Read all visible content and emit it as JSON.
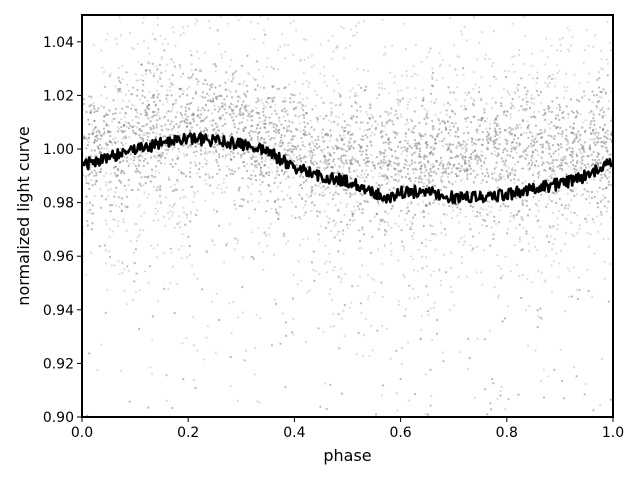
{
  "chart_data": {
    "type": "scatter",
    "title": "",
    "xlabel": "phase",
    "ylabel": "normalized light curve",
    "xlim": [
      0.0,
      1.0
    ],
    "ylim": [
      0.9,
      1.05
    ],
    "xticks": [
      0.0,
      0.2,
      0.4,
      0.6,
      0.8,
      1.0
    ],
    "xtick_labels": [
      "0.0",
      "0.2",
      "0.4",
      "0.6",
      "0.8",
      "1.0"
    ],
    "yticks": [
      0.9,
      0.92,
      0.94,
      0.96,
      0.98,
      1.0,
      1.02,
      1.04
    ],
    "ytick_labels": [
      "0.90",
      "0.92",
      "0.94",
      "0.96",
      "0.98",
      "1.00",
      "1.02",
      "1.04"
    ],
    "grid": false,
    "legend": "none",
    "series": [
      {
        "kind": "scatter",
        "color": "#808080",
        "x": [
          0.0,
          0.05,
          0.1,
          0.15,
          0.2,
          0.25,
          0.3,
          0.35,
          0.4,
          0.45,
          0.5,
          0.55,
          0.6,
          0.65,
          0.7,
          0.75,
          0.8,
          0.85,
          0.9,
          0.95,
          1.0
        ],
        "center": [
          0.998,
          1.002,
          1.005,
          1.008,
          1.009,
          1.008,
          1.006,
          1.003,
          1.0,
          0.997,
          0.995,
          0.994,
          0.994,
          0.995,
          0.996,
          0.997,
          0.998,
          0.999,
          1.0,
          1.0,
          1.001
        ],
        "dense_halfwidth": 0.012,
        "spread": 0.03
      },
      {
        "kind": "line",
        "color": "#000000",
        "x": [
          0.0,
          0.05,
          0.1,
          0.15,
          0.2,
          0.25,
          0.3,
          0.35,
          0.4,
          0.45,
          0.5,
          0.55,
          0.575,
          0.6,
          0.65,
          0.7,
          0.75,
          0.8,
          0.85,
          0.9,
          0.95,
          1.0
        ],
        "y": [
          0.994,
          0.997,
          1.0,
          1.002,
          1.004,
          1.003,
          1.002,
          0.999,
          0.993,
          0.99,
          0.988,
          0.984,
          0.982,
          0.984,
          0.984,
          0.982,
          0.982,
          0.983,
          0.985,
          0.987,
          0.99,
          0.995
        ]
      }
    ]
  }
}
